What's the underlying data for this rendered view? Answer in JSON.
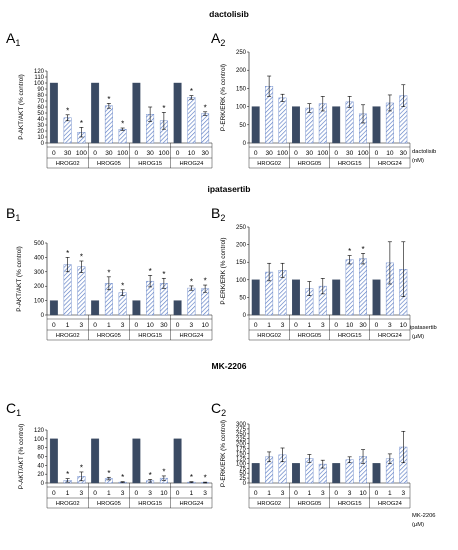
{
  "sections": [
    {
      "title": "dactolisib",
      "unit_line1": "dactolisib",
      "unit_line2": "(nM)"
    },
    {
      "title": "ipatasertib",
      "unit_line1": "ipatasertib",
      "unit_line2": "(μM)"
    },
    {
      "title": "MK-2206",
      "unit_line1": "MK-2206",
      "unit_line2": "(μM)"
    }
  ],
  "colors": {
    "control_bar": "#3a4a63",
    "hatch": "#5b7cc4",
    "axis": "#000000"
  },
  "chart_data": [
    {
      "panel": "A",
      "subscript": "1",
      "type": "bar",
      "ylabel": "P-AKT/AKT (% control)",
      "ylim": [
        0,
        120
      ],
      "yticks": [
        0,
        10,
        20,
        30,
        40,
        50,
        60,
        70,
        80,
        90,
        100,
        110,
        120
      ],
      "grid": false,
      "groups": [
        "HROG02",
        "HROG05",
        "HROG15",
        "HROG24"
      ],
      "doses": [
        [
          "0",
          "30",
          "100"
        ],
        [
          "0",
          "30",
          "100"
        ],
        [
          "0",
          "30",
          "100"
        ],
        [
          "0",
          "10",
          "30"
        ]
      ],
      "values": [
        [
          100,
          42,
          18
        ],
        [
          100,
          62,
          23
        ],
        [
          100,
          48,
          37
        ],
        [
          100,
          76,
          49
        ]
      ],
      "errors": [
        [
          0,
          5,
          8
        ],
        [
          0,
          4,
          2
        ],
        [
          0,
          12,
          14
        ],
        [
          0,
          3,
          3
        ]
      ],
      "significant": [
        [
          false,
          true,
          true
        ],
        [
          false,
          true,
          true
        ],
        [
          false,
          false,
          true
        ],
        [
          false,
          true,
          true
        ]
      ]
    },
    {
      "panel": "A",
      "subscript": "2",
      "type": "bar",
      "ylabel": "P-ERK/ERK (% control)",
      "ylim": [
        0,
        250
      ],
      "yticks": [
        0,
        50,
        100,
        150,
        200,
        250
      ],
      "grid": false,
      "groups": [
        "HROG02",
        "HROG05",
        "HROG15",
        "HROG24"
      ],
      "doses": [
        [
          "0",
          "30",
          "100"
        ],
        [
          "0",
          "30",
          "100"
        ],
        [
          "0",
          "30",
          "100"
        ],
        [
          "0",
          "10",
          "30"
        ]
      ],
      "values": [
        [
          100,
          156,
          124
        ],
        [
          100,
          96,
          108
        ],
        [
          100,
          113,
          80
        ],
        [
          100,
          110,
          130
        ]
      ],
      "errors": [
        [
          0,
          28,
          10
        ],
        [
          0,
          12,
          20
        ],
        [
          0,
          15,
          25
        ],
        [
          0,
          22,
          30
        ]
      ],
      "significant": [
        [
          false,
          false,
          false
        ],
        [
          false,
          false,
          false
        ],
        [
          false,
          false,
          false
        ],
        [
          false,
          false,
          false
        ]
      ]
    },
    {
      "panel": "B",
      "subscript": "1",
      "type": "bar",
      "ylabel": "P-AKT/AKT (% control)",
      "ylim": [
        0,
        500
      ],
      "yticks": [
        0,
        100,
        200,
        300,
        400,
        500
      ],
      "grid": false,
      "groups": [
        "HROG02",
        "HROG05",
        "HROG15",
        "HROG24"
      ],
      "doses": [
        [
          "0",
          "1",
          "3"
        ],
        [
          "0",
          "1",
          "3"
        ],
        [
          "0",
          "10",
          "30"
        ],
        [
          "0",
          "3",
          "10"
        ]
      ],
      "values": [
        [
          100,
          350,
          335
        ],
        [
          100,
          220,
          155
        ],
        [
          100,
          235,
          220
        ],
        [
          100,
          187,
          183
        ]
      ],
      "errors": [
        [
          0,
          50,
          40
        ],
        [
          0,
          45,
          20
        ],
        [
          0,
          40,
          35
        ],
        [
          0,
          15,
          25
        ]
      ],
      "significant": [
        [
          false,
          true,
          true
        ],
        [
          false,
          true,
          true
        ],
        [
          false,
          true,
          true
        ],
        [
          false,
          true,
          true
        ]
      ]
    },
    {
      "panel": "B",
      "subscript": "2",
      "type": "bar",
      "ylabel": "P-ERK/ERK (% control)",
      "ylim": [
        0,
        250
      ],
      "yticks": [
        0,
        50,
        100,
        150,
        200,
        250
      ],
      "grid": false,
      "groups": [
        "HROG02",
        "HROG05",
        "HROG15",
        "HROG24"
      ],
      "doses": [
        [
          "0",
          "1",
          "3"
        ],
        [
          "0",
          "1",
          "3"
        ],
        [
          "0",
          "10",
          "30"
        ],
        [
          "0",
          "3",
          "10"
        ]
      ],
      "values": [
        [
          100,
          122,
          127
        ],
        [
          100,
          75,
          82
        ],
        [
          100,
          157,
          160
        ],
        [
          100,
          148,
          130
        ]
      ],
      "errors": [
        [
          0,
          25,
          20
        ],
        [
          0,
          20,
          22
        ],
        [
          0,
          12,
          15
        ],
        [
          0,
          60,
          78
        ]
      ],
      "significant": [
        [
          false,
          false,
          false
        ],
        [
          false,
          false,
          false
        ],
        [
          false,
          true,
          true
        ],
        [
          false,
          false,
          false
        ]
      ]
    },
    {
      "panel": "C",
      "subscript": "1",
      "type": "bar",
      "ylabel": "P-AKT/AKT (% control)",
      "ylim": [
        0,
        120
      ],
      "yticks": [
        0,
        20,
        40,
        60,
        80,
        100,
        120
      ],
      "grid": false,
      "groups": [
        "HROG02",
        "HROG05",
        "HROG15",
        "HROG24"
      ],
      "doses": [
        [
          "0",
          "1",
          "3"
        ],
        [
          "0",
          "1",
          "3"
        ],
        [
          "0",
          "3",
          "10"
        ],
        [
          "0",
          "1",
          "3"
        ]
      ],
      "values": [
        [
          100,
          6,
          15
        ],
        [
          100,
          10,
          2
        ],
        [
          100,
          5,
          11
        ],
        [
          100,
          2,
          1
        ]
      ],
      "errors": [
        [
          0,
          4,
          10
        ],
        [
          0,
          3,
          1
        ],
        [
          0,
          3,
          5
        ],
        [
          0,
          1,
          1
        ]
      ],
      "significant": [
        [
          false,
          true,
          true
        ],
        [
          false,
          true,
          true
        ],
        [
          false,
          true,
          true
        ],
        [
          false,
          true,
          true
        ]
      ]
    },
    {
      "panel": "C",
      "subscript": "2",
      "type": "bar",
      "ylabel": "P-ERK/ERK (% control)",
      "ylim": [
        0,
        300
      ],
      "yticks": [
        0,
        25,
        50,
        75,
        100,
        125,
        150,
        175,
        200,
        225,
        250,
        275,
        300
      ],
      "grid": false,
      "groups": [
        "HROG02",
        "HROG05",
        "HROG15",
        "HROG24"
      ],
      "doses": [
        [
          "0",
          "1",
          "3"
        ],
        [
          "0",
          "1",
          "3"
        ],
        [
          "0",
          "3",
          "10"
        ],
        [
          "0",
          "1",
          "3"
        ]
      ],
      "values": [
        [
          100,
          133,
          143
        ],
        [
          100,
          125,
          96
        ],
        [
          100,
          118,
          135
        ],
        [
          100,
          123,
          183
        ]
      ],
      "errors": [
        [
          0,
          25,
          35
        ],
        [
          0,
          20,
          20
        ],
        [
          0,
          15,
          35
        ],
        [
          0,
          25,
          80
        ]
      ],
      "significant": [
        [
          false,
          false,
          false
        ],
        [
          false,
          false,
          false
        ],
        [
          false,
          false,
          false
        ],
        [
          false,
          false,
          false
        ]
      ]
    }
  ]
}
